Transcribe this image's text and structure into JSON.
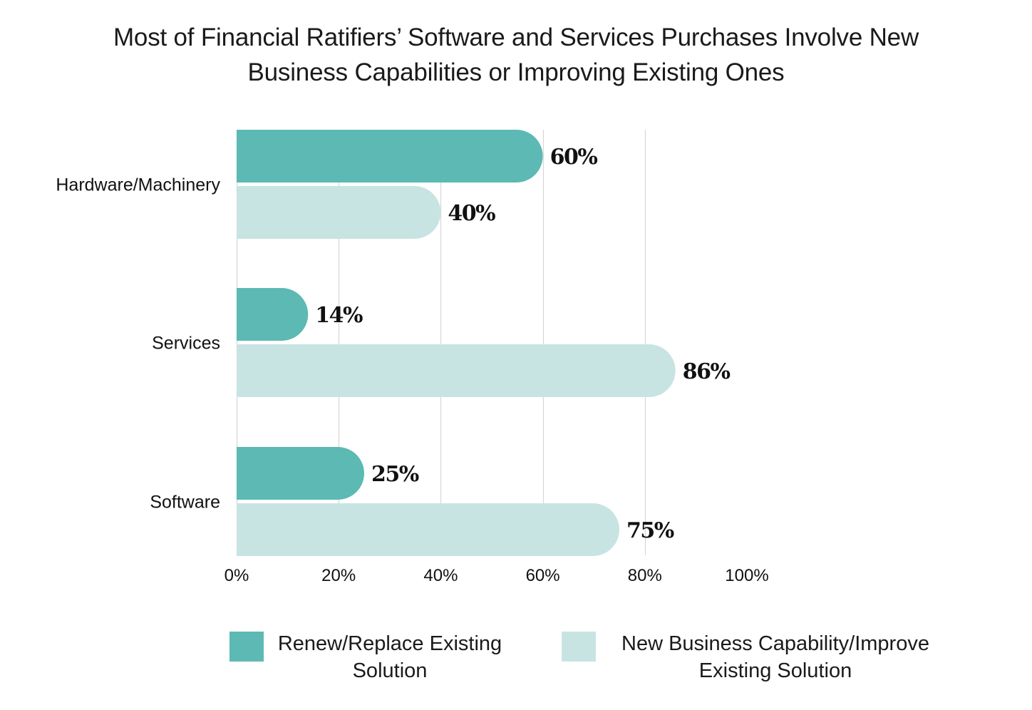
{
  "title_lines": [
    "Most of Financial Ratifiers’ Software and Services Purchases Involve New",
    "Business Capabilities or Improving Existing Ones"
  ],
  "colors": {
    "renew": "#5cb9b3",
    "new_business": "#c8e4e2",
    "grid": "#d6d6d6"
  },
  "chart_data": {
    "type": "bar",
    "orientation": "horizontal",
    "title": "Most of Financial Ratifiers’ Software and Services Purchases Involve New Business Capabilities or Improving Existing Ones",
    "categories": [
      "Hardware/Machinery",
      "Services",
      "Software"
    ],
    "series": [
      {
        "name": "Renew/Replace Existing Solution",
        "values": [
          60,
          14,
          25
        ],
        "labels": [
          "60%",
          "14%",
          "25%"
        ]
      },
      {
        "name": "New Business Capability/Improve Existing Solution",
        "values": [
          40,
          86,
          75
        ],
        "labels": [
          "40%",
          "86%",
          "75%"
        ]
      }
    ],
    "x_ticks": [
      "0%",
      "20%",
      "40%",
      "60%",
      "80%",
      "100%"
    ],
    "xlim": [
      0,
      100
    ],
    "grid": true,
    "legend_position": "bottom"
  },
  "legend": {
    "renew_lines": [
      "Renew/Replace Existing",
      "Solution"
    ],
    "new_business_lines": [
      "New Business Capability/Improve",
      "Existing Solution"
    ]
  }
}
